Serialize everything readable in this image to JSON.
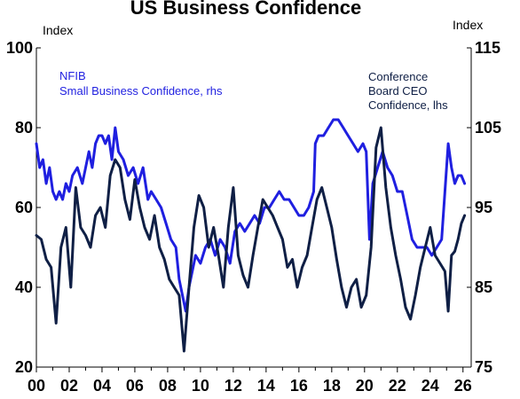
{
  "chart_data": {
    "type": "line",
    "title": "US Business Confidence",
    "left_axis": {
      "unit": "Index",
      "ticks": [
        20,
        40,
        60,
        80,
        100
      ],
      "ylim": [
        20,
        100
      ]
    },
    "right_axis": {
      "unit": "Index",
      "ticks": [
        75,
        85,
        95,
        105,
        115
      ],
      "ylim": [
        75,
        115
      ]
    },
    "x_axis": {
      "range": [
        2000,
        2026.5
      ],
      "tick_labels": [
        "00",
        "02",
        "04",
        "06",
        "08",
        "10",
        "12",
        "14",
        "16",
        "18",
        "20",
        "22",
        "24",
        "26"
      ]
    },
    "series": [
      {
        "name": "NFIB\nSmall Business Confidence, rhs",
        "axis": "right",
        "color": "#1f1fe0",
        "x": [
          2000.0,
          2000.2,
          2000.4,
          2000.6,
          2000.8,
          2001.0,
          2001.2,
          2001.4,
          2001.6,
          2001.8,
          2002.0,
          2002.2,
          2002.5,
          2002.8,
          2003.0,
          2003.2,
          2003.4,
          2003.6,
          2003.8,
          2004.0,
          2004.2,
          2004.4,
          2004.6,
          2004.8,
          2005.0,
          2005.3,
          2005.6,
          2005.9,
          2006.2,
          2006.5,
          2006.8,
          2007.0,
          2007.3,
          2007.6,
          2007.9,
          2008.2,
          2008.5,
          2008.7,
          2008.9,
          2009.1,
          2009.3,
          2009.5,
          2009.7,
          2010.0,
          2010.3,
          2010.6,
          2010.9,
          2011.2,
          2011.5,
          2011.8,
          2012.1,
          2012.4,
          2012.7,
          2013.0,
          2013.3,
          2013.6,
          2013.9,
          2014.2,
          2014.5,
          2014.8,
          2015.1,
          2015.4,
          2015.7,
          2016.0,
          2016.3,
          2016.6,
          2016.9,
          2017.0,
          2017.2,
          2017.5,
          2017.8,
          2018.1,
          2018.4,
          2018.7,
          2019.0,
          2019.3,
          2019.6,
          2019.9,
          2020.1,
          2020.3,
          2020.5,
          2020.8,
          2021.1,
          2021.4,
          2021.7,
          2022.0,
          2022.3,
          2022.6,
          2022.9,
          2023.2,
          2023.5,
          2023.8,
          2024.1,
          2024.4,
          2024.7,
          2024.9,
          2025.1,
          2025.3,
          2025.5,
          2025.7,
          2025.9,
          2026.1
        ],
        "values": [
          103,
          100,
          101,
          98,
          100,
          97,
          96,
          97,
          96,
          98,
          97,
          99,
          100,
          98,
          100,
          102,
          100,
          103,
          104,
          104,
          103,
          104,
          101,
          105,
          102,
          101,
          99,
          100,
          98,
          100,
          96,
          97,
          96,
          95,
          93,
          91,
          90,
          86,
          84,
          82,
          85,
          87,
          89,
          88,
          90,
          91,
          89,
          91,
          90,
          88,
          92,
          93,
          92,
          93,
          94,
          93,
          95,
          95,
          96,
          97,
          96,
          96,
          95,
          94,
          94,
          95,
          97,
          103,
          104,
          104,
          105,
          106,
          106,
          105,
          104,
          103,
          102,
          103,
          102,
          91,
          98,
          100,
          102,
          100,
          99,
          97,
          97,
          94,
          91,
          90,
          90,
          90,
          89,
          90,
          91,
          97,
          103,
          100,
          98,
          99,
          99,
          98
        ]
      },
      {
        "name": "Conference\nBoard CEO\nConfidence, lhs",
        "axis": "left",
        "color": "#0f1f45",
        "x": [
          2000.0,
          2000.3,
          2000.6,
          2000.9,
          2001.2,
          2001.5,
          2001.8,
          2002.1,
          2002.4,
          2002.7,
          2003.0,
          2003.3,
          2003.6,
          2003.9,
          2004.2,
          2004.5,
          2004.8,
          2005.1,
          2005.4,
          2005.7,
          2006.0,
          2006.3,
          2006.6,
          2006.9,
          2007.2,
          2007.5,
          2007.8,
          2008.1,
          2008.4,
          2008.7,
          2009.0,
          2009.3,
          2009.6,
          2009.9,
          2010.2,
          2010.5,
          2010.8,
          2011.1,
          2011.4,
          2011.7,
          2012.0,
          2012.3,
          2012.6,
          2012.9,
          2013.2,
          2013.5,
          2013.8,
          2014.1,
          2014.4,
          2014.7,
          2015.0,
          2015.3,
          2015.6,
          2015.9,
          2016.2,
          2016.5,
          2016.8,
          2017.1,
          2017.4,
          2017.7,
          2018.0,
          2018.3,
          2018.6,
          2018.9,
          2019.2,
          2019.5,
          2019.8,
          2020.1,
          2020.4,
          2020.7,
          2021.0,
          2021.3,
          2021.6,
          2021.9,
          2022.2,
          2022.5,
          2022.8,
          2023.1,
          2023.4,
          2023.7,
          2024.0,
          2024.3,
          2024.6,
          2024.9,
          2025.1,
          2025.3,
          2025.5,
          2025.7,
          2025.9,
          2026.1
        ],
        "values": [
          53,
          52,
          47,
          45,
          31,
          50,
          55,
          40,
          65,
          55,
          53,
          50,
          58,
          60,
          55,
          68,
          72,
          70,
          62,
          57,
          67,
          60,
          55,
          52,
          58,
          50,
          47,
          42,
          40,
          38,
          24,
          40,
          55,
          63,
          60,
          50,
          55,
          48,
          40,
          55,
          65,
          48,
          43,
          40,
          48,
          55,
          62,
          60,
          58,
          55,
          52,
          45,
          47,
          40,
          45,
          48,
          55,
          62,
          65,
          60,
          55,
          47,
          40,
          35,
          40,
          42,
          35,
          38,
          50,
          75,
          80,
          65,
          55,
          48,
          42,
          35,
          32,
          38,
          45,
          50,
          55,
          48,
          46,
          44,
          34,
          48,
          49,
          52,
          56,
          58
        ]
      }
    ]
  }
}
